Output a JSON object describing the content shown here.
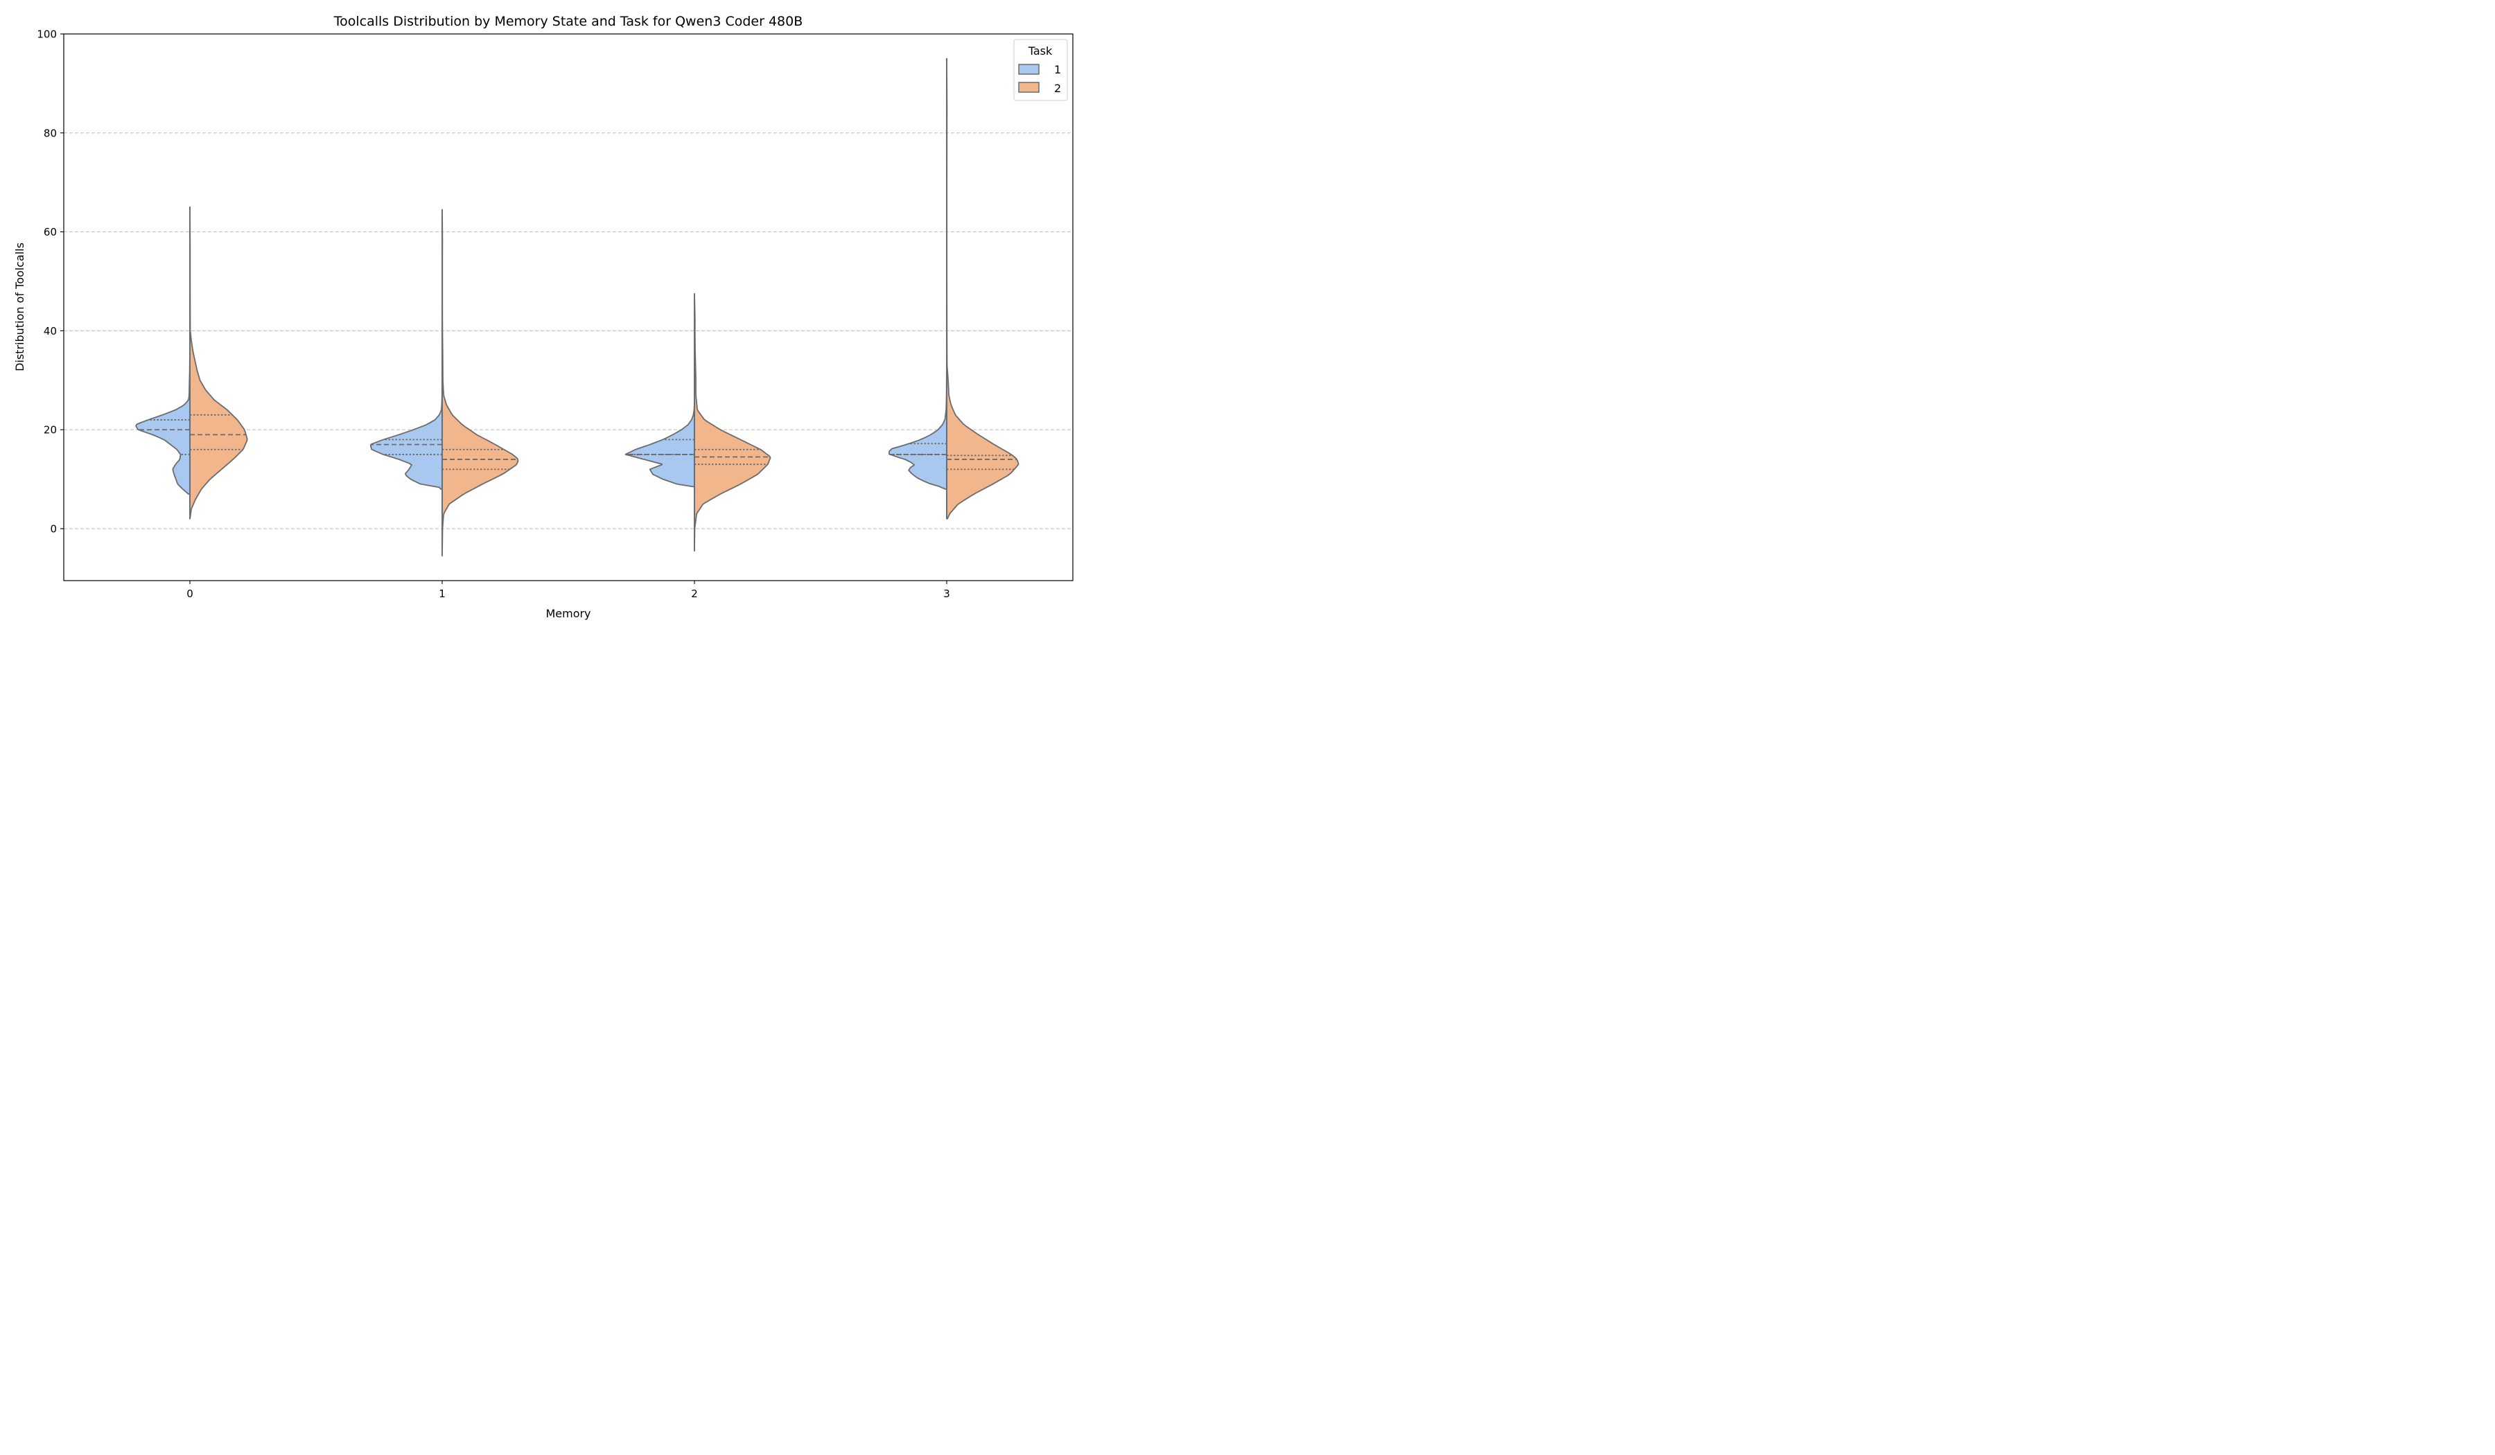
{
  "chart_data": {
    "type": "violin",
    "title": "Toolcalls Distribution by Memory State and Task for Qwen3 Coder 480B",
    "xlabel": "Memory",
    "ylabel": "Distribution of Toolcalls",
    "categories": [
      "0",
      "1",
      "2",
      "3"
    ],
    "ylim": [
      -10.5,
      100
    ],
    "yticks": [
      0,
      20,
      40,
      60,
      80,
      100
    ],
    "grid": "y-dashed",
    "legend": {
      "title": "Task",
      "placement": "top-right",
      "entries": [
        "1",
        "2"
      ]
    },
    "colors": {
      "1": "#a9c8ef",
      "2": "#f2b68c",
      "edge": "#6b6b6b"
    },
    "series": [
      {
        "name": "1",
        "violins": [
          {
            "category": "0",
            "min": 7,
            "max": 65,
            "quartiles": [
              15,
              20,
              22
            ],
            "profile": [
              [
                7,
                0.02
              ],
              [
                8,
                0.1
              ],
              [
                9,
                0.17
              ],
              [
                11,
                0.22
              ],
              [
                12,
                0.24
              ],
              [
                13,
                0.2
              ],
              [
                14,
                0.14
              ],
              [
                15,
                0.13
              ],
              [
                16,
                0.18
              ],
              [
                18,
                0.36
              ],
              [
                19,
                0.52
              ],
              [
                20,
                0.72
              ],
              [
                21,
                0.76
              ],
              [
                22,
                0.58
              ],
              [
                23,
                0.38
              ],
              [
                24,
                0.2
              ],
              [
                25,
                0.08
              ],
              [
                26,
                0.02
              ],
              [
                27,
                0.01
              ],
              [
                29,
                0.008
              ],
              [
                32,
                0.003
              ],
              [
                35,
                0.001
              ]
            ]
          },
          {
            "category": "1",
            "min": 8,
            "max": 64,
            "quartiles": [
              15,
              17,
              18
            ],
            "profile": [
              [
                8.3,
                0.02
              ],
              [
                9,
                0.3
              ],
              [
                10,
                0.44
              ],
              [
                11,
                0.52
              ],
              [
                12,
                0.46
              ],
              [
                13,
                0.42
              ],
              [
                14,
                0.6
              ],
              [
                15,
                0.82
              ],
              [
                16,
                0.98
              ],
              [
                17,
                1.0
              ],
              [
                18,
                0.82
              ],
              [
                19,
                0.6
              ],
              [
                20,
                0.4
              ],
              [
                21,
                0.22
              ],
              [
                22,
                0.1
              ],
              [
                23,
                0.04
              ],
              [
                24,
                0.01
              ],
              [
                26,
                0.003
              ],
              [
                28,
                0.001
              ]
            ]
          },
          {
            "category": "2",
            "min": 8.5,
            "max": 25,
            "quartiles": [
              15,
              15,
              18
            ],
            "profile": [
              [
                8.5,
                0.02
              ],
              [
                9,
                0.24
              ],
              [
                10,
                0.44
              ],
              [
                11,
                0.58
              ],
              [
                12,
                0.62
              ],
              [
                13,
                0.44
              ],
              [
                14,
                0.7
              ],
              [
                15,
                0.96
              ],
              [
                16,
                0.82
              ],
              [
                17,
                0.62
              ],
              [
                18,
                0.44
              ],
              [
                19,
                0.3
              ],
              [
                20,
                0.18
              ],
              [
                21,
                0.09
              ],
              [
                22,
                0.04
              ],
              [
                23,
                0.015
              ],
              [
                24,
                0.005
              ],
              [
                25,
                0.001
              ]
            ]
          },
          {
            "category": "3",
            "min": 8,
            "max": 95,
            "quartiles": [
              15,
              15,
              17.2
            ],
            "profile": [
              [
                8.2,
                0.02
              ],
              [
                9,
                0.22
              ],
              [
                10,
                0.38
              ],
              [
                11,
                0.48
              ],
              [
                12,
                0.54
              ],
              [
                13,
                0.44
              ],
              [
                14,
                0.58
              ],
              [
                15,
                0.8
              ],
              [
                16,
                0.8
              ],
              [
                17,
                0.56
              ],
              [
                18,
                0.36
              ],
              [
                19,
                0.22
              ],
              [
                20,
                0.12
              ],
              [
                21,
                0.06
              ],
              [
                22,
                0.025
              ],
              [
                24,
                0.008
              ],
              [
                27,
                0.003
              ],
              [
                32,
                0.001
              ],
              [
                33,
                0.0005
              ]
            ]
          }
        ]
      },
      {
        "name": "2",
        "violins": [
          {
            "category": "0",
            "min": 2,
            "max": 65,
            "quartiles": [
              16,
              19,
              23
            ],
            "profile": [
              [
                2,
                0.001
              ],
              [
                4,
                0.02
              ],
              [
                6,
                0.08
              ],
              [
                8,
                0.16
              ],
              [
                10,
                0.28
              ],
              [
                12,
                0.44
              ],
              [
                14,
                0.6
              ],
              [
                16,
                0.74
              ],
              [
                18,
                0.8
              ],
              [
                20,
                0.76
              ],
              [
                22,
                0.66
              ],
              [
                24,
                0.52
              ],
              [
                26,
                0.34
              ],
              [
                28,
                0.22
              ],
              [
                30,
                0.14
              ],
              [
                32,
                0.1
              ],
              [
                34,
                0.07
              ],
              [
                36,
                0.04
              ],
              [
                38,
                0.02
              ],
              [
                40,
                0.005
              ],
              [
                45,
                0.004
              ],
              [
                50,
                0.003
              ],
              [
                55,
                0.003
              ],
              [
                60,
                0.002
              ],
              [
                65,
                0
              ]
            ]
          },
          {
            "category": "1",
            "min": -5.5,
            "max": 64.5,
            "quartiles": [
              12,
              14,
              16
            ],
            "profile": [
              [
                -5.5,
                0
              ],
              [
                0,
                0.005
              ],
              [
                3,
                0.02
              ],
              [
                5,
                0.1
              ],
              [
                7,
                0.3
              ],
              [
                9,
                0.56
              ],
              [
                11,
                0.84
              ],
              [
                13,
                1.04
              ],
              [
                14,
                1.06
              ],
              [
                15,
                0.98
              ],
              [
                17,
                0.74
              ],
              [
                19,
                0.48
              ],
              [
                21,
                0.28
              ],
              [
                23,
                0.14
              ],
              [
                25,
                0.06
              ],
              [
                27,
                0.02
              ],
              [
                30,
                0.01
              ],
              [
                35,
                0.008
              ],
              [
                40,
                0.004
              ],
              [
                45,
                0.003
              ],
              [
                50,
                0.003
              ],
              [
                55,
                0.003
              ],
              [
                58,
                0.004
              ],
              [
                62,
                0.002
              ],
              [
                64.5,
                0
              ]
            ]
          },
          {
            "category": "2",
            "min": -4.5,
            "max": 47.5,
            "quartiles": [
              13,
              14.5,
              16
            ],
            "profile": [
              [
                -4.5,
                0
              ],
              [
                0,
                0.004
              ],
              [
                3,
                0.03
              ],
              [
                5,
                0.12
              ],
              [
                7,
                0.36
              ],
              [
                9,
                0.64
              ],
              [
                11,
                0.88
              ],
              [
                13,
                1.02
              ],
              [
                14.5,
                1.06
              ],
              [
                16,
                0.92
              ],
              [
                18,
                0.64
              ],
              [
                20,
                0.36
              ],
              [
                22,
                0.14
              ],
              [
                24,
                0.04
              ],
              [
                27,
                0.02
              ],
              [
                30,
                0.02
              ],
              [
                33,
                0.015
              ],
              [
                36,
                0.01
              ],
              [
                40,
                0.007
              ],
              [
                42,
                0.008
              ],
              [
                45,
                0.004
              ],
              [
                47.5,
                0
              ]
            ]
          },
          {
            "category": "3",
            "min": 2,
            "max": 95,
            "quartiles": [
              12,
              14,
              14.8
            ],
            "profile": [
              [
                2,
                0.01
              ],
              [
                3,
                0.04
              ],
              [
                5,
                0.16
              ],
              [
                7,
                0.38
              ],
              [
                9,
                0.64
              ],
              [
                11,
                0.88
              ],
              [
                13,
                1.0
              ],
              [
                14,
                0.98
              ],
              [
                15,
                0.9
              ],
              [
                17,
                0.66
              ],
              [
                19,
                0.44
              ],
              [
                21,
                0.24
              ],
              [
                23,
                0.12
              ],
              [
                25,
                0.06
              ],
              [
                27,
                0.03
              ],
              [
                30,
                0.02
              ],
              [
                33,
                0.005
              ],
              [
                40,
                0.003
              ],
              [
                50,
                0.002
              ],
              [
                60,
                0.002
              ],
              [
                70,
                0.002
              ],
              [
                80,
                0.003
              ],
              [
                85,
                0.004
              ],
              [
                90,
                0.002
              ],
              [
                95,
                0
              ]
            ]
          }
        ]
      }
    ]
  }
}
